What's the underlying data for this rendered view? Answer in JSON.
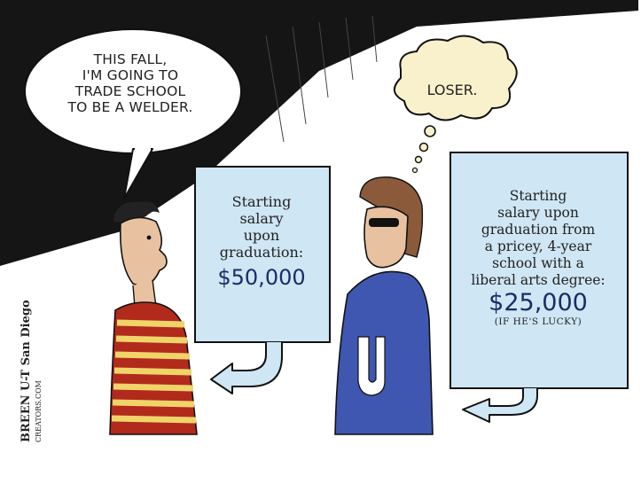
{
  "speech_bubble": {
    "lines": [
      "THIS FALL,",
      "I'M GOING TO",
      "TRADE SCHOOL",
      "TO BE A WELDER."
    ]
  },
  "thought_bubble": {
    "text": "LOSER."
  },
  "sign_left": {
    "lines": [
      "Starting",
      "salary",
      "upon",
      "graduation:"
    ],
    "amount": "$50,000"
  },
  "sign_right": {
    "lines": [
      "Starting",
      "salary upon",
      "graduation from",
      "a pricey, 4-year",
      "school with a",
      "liberal arts degree:"
    ],
    "amount": "$25,000",
    "note": "(IF HE'S LUCKY)"
  },
  "signature": {
    "name": "BREEN",
    "affiliation": "U-T San Diego",
    "syndicate": "CREATORS.COM"
  },
  "colors": {
    "sign_fill": "#cfe6f4",
    "amount_text": "#1a2d66",
    "hoodie": "#3f57b0",
    "stripe_red": "#b12a1c",
    "stripe_yellow": "#f0d46a",
    "thought_fill": "#f8f1cc",
    "skin": "#e8c2a0"
  }
}
